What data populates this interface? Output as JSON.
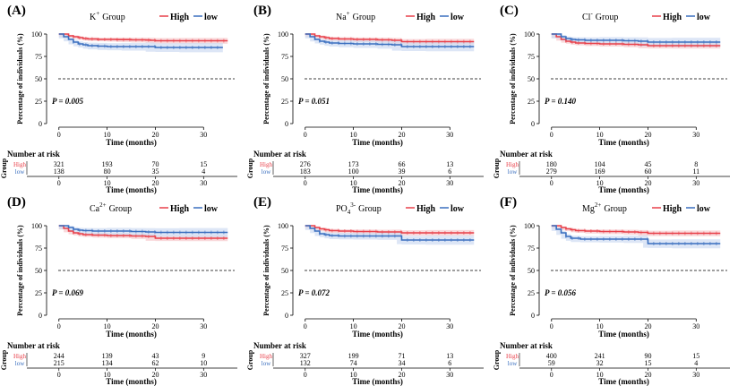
{
  "figure": {
    "ylabel": "Percentage of individuals (%)",
    "xlabel": "Time (months)",
    "risk_title": "Number at risk",
    "risk_ylabel": "Group",
    "legend_group": "Group",
    "legend_high": "High",
    "legend_low": "low",
    "colors": {
      "high": "#e8414b",
      "low": "#3a6fbf",
      "low_band": "#cfdcf2",
      "high_band": "#f6c9cc",
      "grid": "#000000"
    }
  },
  "chart_data": [
    {
      "type": "line",
      "panel_label": "(A)",
      "title_ion": "K",
      "title_sup": "+",
      "p_value": "P = 0.005",
      "x_ticks": [
        0,
        10,
        20,
        30
      ],
      "y_ticks": [
        0,
        25,
        50,
        75,
        100
      ],
      "xlim": [
        -2,
        37
      ],
      "ylim": [
        0,
        100
      ],
      "reference_line": 50,
      "series": [
        {
          "name": "High",
          "x": [
            0,
            2,
            3,
            4,
            5,
            6,
            8,
            10,
            12,
            15,
            18,
            19,
            20,
            25,
            35
          ],
          "y": [
            100,
            98,
            97,
            96,
            95,
            94.5,
            94,
            94,
            93.8,
            93.5,
            93.3,
            93,
            92.5,
            92.5,
            92.5
          ]
        },
        {
          "name": "low",
          "x": [
            0,
            1,
            2,
            3,
            4,
            5,
            6,
            8,
            10,
            13,
            18,
            20,
            25,
            34
          ],
          "y": [
            100,
            97,
            94,
            91,
            89,
            88,
            87,
            86.5,
            86,
            86,
            86,
            85,
            85,
            85
          ]
        }
      ],
      "risk_table": {
        "x": [
          0,
          10,
          20,
          30
        ],
        "High": [
          321,
          193,
          70,
          15
        ],
        "low": [
          138,
          80,
          35,
          4
        ]
      }
    },
    {
      "type": "line",
      "panel_label": "(B)",
      "title_ion": "Na",
      "title_sup": "+",
      "p_value": "P = 0.051",
      "x_ticks": [
        0,
        10,
        20,
        30
      ],
      "y_ticks": [
        0,
        25,
        50,
        75,
        100
      ],
      "xlim": [
        -2,
        37
      ],
      "ylim": [
        0,
        100
      ],
      "reference_line": 50,
      "series": [
        {
          "name": "High",
          "x": [
            0,
            2,
            3,
            4,
            5,
            7,
            10,
            15,
            18,
            20,
            25,
            35
          ],
          "y": [
            100,
            98,
            97,
            96,
            95,
            94.5,
            94,
            93.5,
            93,
            91.5,
            91.5,
            91.5
          ]
        },
        {
          "name": "low",
          "x": [
            0,
            1,
            2,
            3,
            4,
            5,
            7,
            10,
            15,
            18,
            20,
            25,
            35
          ],
          "y": [
            100,
            97,
            94,
            92,
            91,
            90,
            89.5,
            89,
            88.5,
            88,
            86,
            86,
            86
          ]
        }
      ],
      "risk_table": {
        "x": [
          0,
          10,
          20,
          30
        ],
        "High": [
          276,
          173,
          66,
          13
        ],
        "low": [
          183,
          100,
          39,
          6
        ]
      }
    },
    {
      "type": "line",
      "panel_label": "(C)",
      "title_ion": "Cl",
      "title_sup": "-",
      "p_value": "P = 0.140",
      "x_ticks": [
        0,
        10,
        20,
        30
      ],
      "y_ticks": [
        0,
        25,
        50,
        75,
        100
      ],
      "xlim": [
        -2,
        37
      ],
      "ylim": [
        0,
        100
      ],
      "reference_line": 50,
      "series": [
        {
          "name": "High",
          "x": [
            0,
            1,
            2,
            3,
            4,
            5,
            7,
            10,
            15,
            18,
            20,
            25,
            35
          ],
          "y": [
            100,
            97,
            94,
            92,
            91,
            90,
            89.5,
            89,
            88.5,
            88,
            87,
            87,
            87
          ]
        },
        {
          "name": "low",
          "x": [
            0,
            2,
            3,
            4,
            5,
            7,
            10,
            15,
            18,
            20,
            25,
            35
          ],
          "y": [
            100,
            97,
            95,
            94,
            93.5,
            93,
            93,
            92.5,
            92,
            91,
            91,
            91
          ]
        }
      ],
      "risk_table": {
        "x": [
          0,
          10,
          20,
          30
        ],
        "High": [
          180,
          104,
          45,
          8
        ],
        "low": [
          279,
          169,
          60,
          11
        ]
      }
    },
    {
      "type": "line",
      "panel_label": "(D)",
      "title_ion": "Ca",
      "title_sup": "2+",
      "p_value": "P = 0.069",
      "x_ticks": [
        0,
        10,
        20,
        30
      ],
      "y_ticks": [
        0,
        25,
        50,
        75,
        100
      ],
      "xlim": [
        -2,
        37
      ],
      "ylim": [
        0,
        100
      ],
      "reference_line": 50,
      "series": [
        {
          "name": "High",
          "x": [
            0,
            1,
            2,
            3,
            4,
            5,
            7,
            10,
            15,
            18,
            20,
            25,
            35
          ],
          "y": [
            100,
            97,
            94,
            92,
            91,
            90,
            89.5,
            89,
            88.5,
            88,
            86,
            86,
            86
          ]
        },
        {
          "name": "low",
          "x": [
            0,
            2,
            3,
            4,
            5,
            7,
            10,
            15,
            18,
            20,
            25,
            35
          ],
          "y": [
            100,
            98,
            96,
            95,
            94.5,
            94,
            94,
            93.5,
            93,
            92.5,
            92.5,
            92.5
          ]
        }
      ],
      "risk_table": {
        "x": [
          0,
          10,
          20,
          30
        ],
        "High": [
          244,
          139,
          43,
          9
        ],
        "low": [
          215,
          134,
          62,
          10
        ]
      }
    },
    {
      "type": "line",
      "panel_label": "(E)",
      "title_ion": "PO",
      "title_sub": "4",
      "title_sup": "3-",
      "p_value": "P = 0.072",
      "x_ticks": [
        0,
        10,
        20,
        30
      ],
      "y_ticks": [
        0,
        25,
        50,
        75,
        100
      ],
      "xlim": [
        -2,
        37
      ],
      "ylim": [
        0,
        100
      ],
      "reference_line": 50,
      "series": [
        {
          "name": "High",
          "x": [
            0,
            2,
            3,
            4,
            5,
            7,
            10,
            15,
            18,
            20,
            25,
            35
          ],
          "y": [
            100,
            98,
            96.5,
            95.5,
            94.5,
            94,
            93.5,
            93,
            93,
            92,
            92,
            92
          ]
        },
        {
          "name": "low",
          "x": [
            0,
            1,
            2,
            3,
            4,
            5,
            7,
            10,
            15,
            19,
            20,
            25,
            35
          ],
          "y": [
            100,
            97,
            94,
            91,
            90,
            89,
            88.5,
            88.5,
            88.5,
            88.5,
            84,
            84,
            84
          ]
        }
      ],
      "risk_table": {
        "x": [
          0,
          10,
          20,
          30
        ],
        "High": [
          327,
          199,
          71,
          13
        ],
        "low": [
          132,
          74,
          34,
          6
        ]
      }
    },
    {
      "type": "line",
      "panel_label": "(F)",
      "title_ion": "Mg",
      "title_sup": "2+",
      "p_value": "P = 0.056",
      "x_ticks": [
        0,
        10,
        20,
        30
      ],
      "y_ticks": [
        0,
        25,
        50,
        75,
        100
      ],
      "xlim": [
        -2,
        37
      ],
      "ylim": [
        0,
        100
      ],
      "reference_line": 50,
      "series": [
        {
          "name": "High",
          "x": [
            0,
            2,
            3,
            4,
            5,
            7,
            10,
            15,
            18,
            20,
            25,
            35
          ],
          "y": [
            100,
            98,
            96.5,
            95.5,
            94.5,
            94,
            93.5,
            93,
            92.5,
            91.5,
            91.5,
            91.5
          ]
        },
        {
          "name": "low",
          "x": [
            0,
            1,
            2,
            3,
            4,
            6,
            10,
            15,
            19,
            20,
            25,
            35
          ],
          "y": [
            100,
            96,
            92,
            88,
            86,
            85,
            85,
            85,
            85,
            80,
            80,
            80
          ]
        }
      ],
      "risk_table": {
        "x": [
          0,
          10,
          20,
          30
        ],
        "High": [
          400,
          241,
          90,
          15
        ],
        "low": [
          59,
          32,
          15,
          4
        ]
      }
    }
  ]
}
